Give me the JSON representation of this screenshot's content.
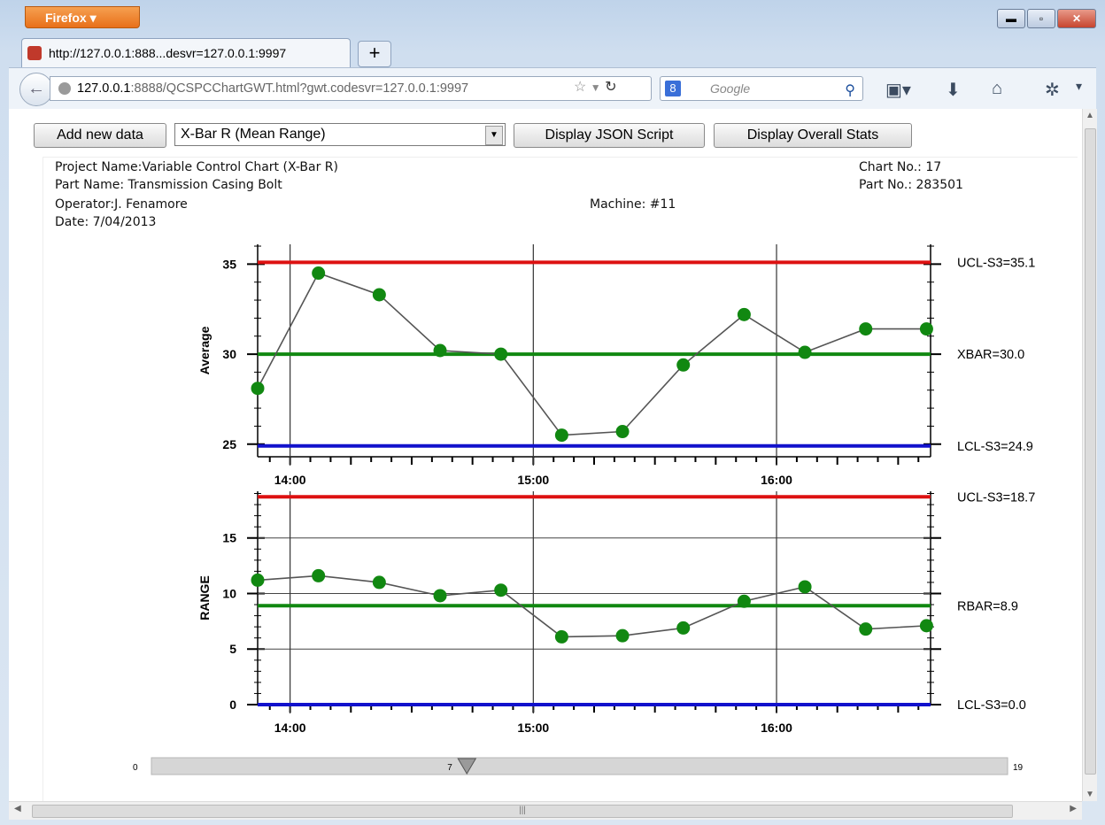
{
  "browser": {
    "menu_label": "Firefox",
    "tab_title": "http://127.0.0.1:888...desvr=127.0.0.1:9997",
    "url_host": "127.0.0.1",
    "url_rest": ":8888/QCSPCChartGWT.html?gwt.codesvr=127.0.0.1:9997",
    "search_placeholder": "Google",
    "icons": [
      "back-arrow-icon",
      "globe-icon",
      "star-icon",
      "reload-icon",
      "google-icon",
      "search-icon",
      "bookmarks-icon",
      "download-icon",
      "home-icon",
      "addon-icon",
      "menu-icon"
    ]
  },
  "toolbar": {
    "add_label": "Add new data",
    "chart_type": "X-Bar R (Mean Range)",
    "json_label": "Display JSON Script",
    "stats_label": "Display Overall Stats"
  },
  "header": {
    "project": "Project Name:Variable Control Chart (X-Bar R)",
    "part_name": "Part Name: Transmission Casing Bolt",
    "operator": "Operator:J. Fenamore",
    "date": "Date: 7/04/2013",
    "machine": "Machine: #11",
    "chart_no": "Chart No.: 17",
    "part_no": "Part No.: 283501"
  },
  "chart_data": [
    {
      "type": "line",
      "ylabel": "Average",
      "x": [
        "13:52",
        "14:07",
        "14:22",
        "14:37",
        "14:52",
        "15:07",
        "15:22",
        "15:37",
        "15:52",
        "16:07",
        "16:22",
        "16:37"
      ],
      "xticks": [
        "14:00",
        "15:00",
        "16:00"
      ],
      "ylim": [
        24.3,
        36.1
      ],
      "yticks": [
        25,
        30,
        35
      ],
      "series": [
        {
          "values": [
            28.1,
            34.5,
            33.3,
            30.2,
            30.0,
            25.5,
            25.7,
            29.4,
            32.2,
            30.1,
            31.4,
            31.4
          ]
        }
      ],
      "limits": [
        {
          "label": "UCL-S3=35.1",
          "value": 35.1,
          "color": "#dd1111"
        },
        {
          "label": "XBAR=30.0",
          "value": 30.0,
          "color": "#118811"
        },
        {
          "label": "LCL-S3=24.9",
          "value": 24.9,
          "color": "#1111cc"
        }
      ]
    },
    {
      "type": "line",
      "ylabel": "RANGE",
      "x": [
        "13:52",
        "14:07",
        "14:22",
        "14:37",
        "14:52",
        "15:07",
        "15:22",
        "15:37",
        "15:52",
        "16:07",
        "16:22",
        "16:37"
      ],
      "xticks": [
        "14:00",
        "15:00",
        "16:00"
      ],
      "ylim": [
        0,
        19.2
      ],
      "yticks": [
        0,
        5,
        10,
        15
      ],
      "series": [
        {
          "values": [
            11.2,
            11.6,
            11.0,
            9.8,
            10.3,
            6.1,
            6.2,
            6.9,
            9.3,
            10.6,
            6.8,
            7.1
          ]
        }
      ],
      "limits": [
        {
          "label": "UCL-S3=18.7",
          "value": 18.7,
          "color": "#dd1111"
        },
        {
          "label": "RBAR=8.9",
          "value": 8.9,
          "color": "#118811"
        },
        {
          "label": "LCL-S3=0.0",
          "value": 0.0,
          "color": "#1111cc"
        }
      ]
    }
  ],
  "slider": {
    "min_label": "0",
    "max_label": "19",
    "value_label": "7",
    "min": 0,
    "max": 19,
    "value": 7
  }
}
